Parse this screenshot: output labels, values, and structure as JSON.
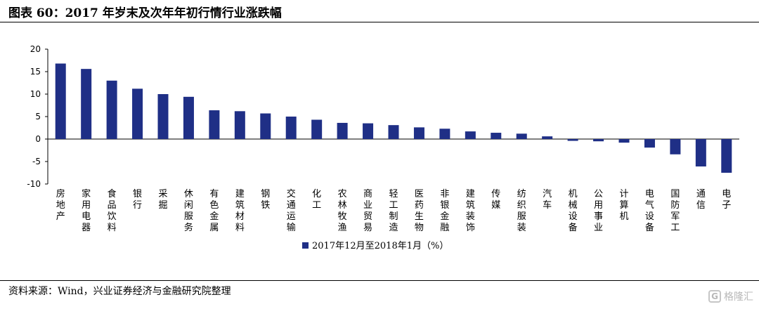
{
  "title": "图表 60：2017 年岁末及次年年初行情行业涨跌幅",
  "source": "资料来源：Wind，兴业证券经济与金融研究院整理",
  "watermark": {
    "icon": "G",
    "text": "格隆汇"
  },
  "colors": {
    "bar": "#1f2f86",
    "axis": "#000000"
  },
  "chart_data": {
    "type": "bar",
    "ylim": [
      -10,
      20
    ],
    "yticks": [
      -10,
      -5,
      0,
      5,
      10,
      15,
      20
    ],
    "grid": false,
    "legend_position": "bottom",
    "categories": [
      "房地产",
      "家用电器",
      "食品饮料",
      "银行",
      "采掘",
      "休闲服务",
      "有色金属",
      "建筑材料",
      "钢铁",
      "交通运输",
      "化工",
      "农林牧渔",
      "商业贸易",
      "轻工制造",
      "医药生物",
      "非银金融",
      "建筑装饰",
      "传媒",
      "纺织服装",
      "汽车",
      "机械设备",
      "公用事业",
      "计算机",
      "电气设备",
      "国防军工",
      "通信",
      "电子"
    ],
    "series": [
      {
        "name": "2017年12月至2018年1月（%）",
        "values": [
          16.8,
          15.6,
          13.0,
          11.2,
          10.0,
          9.4,
          6.4,
          6.2,
          5.7,
          5.0,
          4.3,
          3.6,
          3.5,
          3.1,
          2.6,
          2.3,
          1.7,
          1.4,
          1.2,
          0.6,
          -0.4,
          -0.5,
          -0.8,
          -1.9,
          -3.4,
          -6.1,
          -7.5
        ]
      }
    ]
  }
}
